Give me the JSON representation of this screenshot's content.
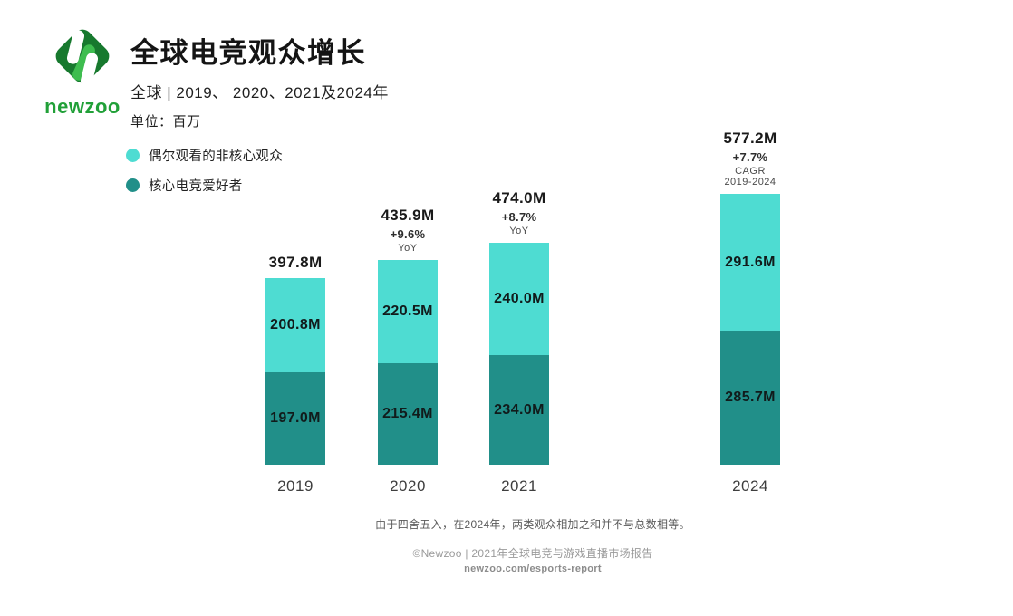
{
  "header": {
    "logo_text": "newzoo",
    "title": "全球电竞观众增长",
    "subtitle": "全球 | 2019、 2020、2021及2024年",
    "unit": "单位：百万"
  },
  "legend": [
    {
      "label": "偶尔观看的非核心观众",
      "color": "#4EDCD2"
    },
    {
      "label": "核心电竞爱好者",
      "color": "#218F89"
    }
  ],
  "chart_data": {
    "type": "bar",
    "stacked": true,
    "grid": false,
    "value_axis_visible": false,
    "unit_suffix": "M",
    "unit_label": "百万 (millions)",
    "legend_position": "top-left",
    "categories": [
      "2019",
      "2020",
      "2021",
      "2024"
    ],
    "series": [
      {
        "name": "偶尔观看的非核心观众",
        "color": "#4EDCD2",
        "values": [
          200.8,
          220.5,
          240.0,
          291.6
        ]
      },
      {
        "name": "核心电竞爱好者",
        "color": "#218F89",
        "values": [
          197.0,
          215.4,
          234.0,
          285.7
        ]
      }
    ],
    "annotations": [
      {
        "total": "397.8M",
        "growth": "",
        "growth_label": ""
      },
      {
        "total": "435.9M",
        "growth": "+9.6%",
        "growth_label": "YoY"
      },
      {
        "total": "474.0M",
        "growth": "+8.7%",
        "growth_label": "YoY"
      },
      {
        "total": "577.2M",
        "growth": "+7.7%",
        "growth_label": "CAGR 2019-2024"
      }
    ]
  },
  "footer": {
    "note": "由于四舍五入，在2024年，两类观众相加之和并不与总数相等。",
    "source": "©Newzoo | 2021年全球电竞与游戏直播市场报告",
    "url": "newzoo.com/esports-report"
  },
  "colors": {
    "casual_segment": "#4EDCD2",
    "core_segment": "#218F89",
    "logo_diamond": "#17792E",
    "logo_pill_green": "#3EBD4F",
    "wordmark_green": "#21A038"
  }
}
